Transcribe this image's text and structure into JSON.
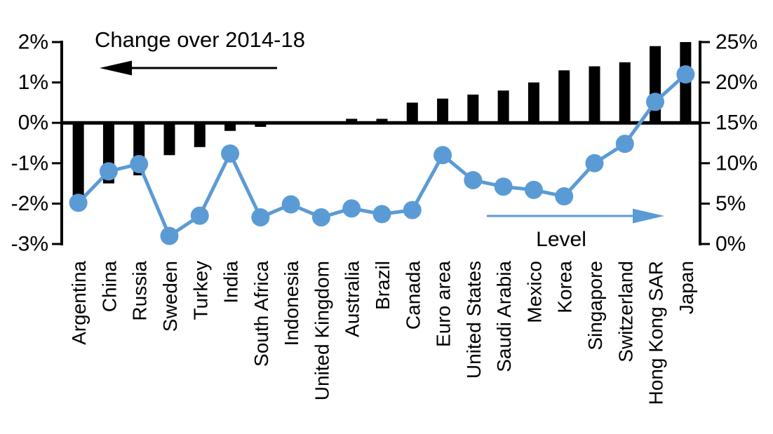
{
  "chart_data": {
    "type": "combo-bar-line",
    "title": "Change over 2014-18",
    "categories": [
      "Argentina",
      "China",
      "Russia",
      "Sweden",
      "Turkey",
      "India",
      "South Africa",
      "Indonesia",
      "United Kingdom",
      "Australia",
      "Brazil",
      "Canada",
      "Euro area",
      "United States",
      "Saudi Arabia",
      "Mexico",
      "Korea",
      "Singapore",
      "Switzerland",
      "Hong Kong SAR",
      "Japan"
    ],
    "series": [
      {
        "name": "Change over 2014-18",
        "type": "bar",
        "axis": "left",
        "values": [
          -1.8,
          -1.5,
          -1.3,
          -0.8,
          -0.6,
          -0.2,
          -0.1,
          0,
          0,
          0.1,
          0.1,
          0.5,
          0.6,
          0.7,
          0.8,
          1.0,
          1.3,
          1.4,
          1.5,
          1.9,
          2.0
        ]
      },
      {
        "name": "Level",
        "type": "line",
        "axis": "right",
        "values": [
          5.1,
          9.0,
          9.9,
          1.0,
          3.5,
          11.2,
          3.3,
          4.9,
          3.3,
          4.4,
          3.7,
          4.2,
          11.0,
          7.9,
          7.1,
          6.7,
          5.9,
          10.0,
          12.4,
          17.6,
          21.0
        ]
      }
    ],
    "left_axis": {
      "tick_labels": [
        "2%",
        "1%",
        "0%",
        "-1%",
        "-2%",
        "-3%"
      ],
      "tick_values": [
        2,
        1,
        0,
        -1,
        -2,
        -3
      ],
      "min": -3,
      "max": 2
    },
    "right_axis": {
      "tick_labels": [
        "25%",
        "20%",
        "15%",
        "10%",
        "5%",
        "0%"
      ],
      "tick_values": [
        25,
        20,
        15,
        10,
        5,
        0
      ],
      "min": 0,
      "max": 25
    },
    "annotations": [
      {
        "text": "Change over 2014-18",
        "arrow_direction": "left",
        "color": "#000000"
      },
      {
        "text": "Level",
        "arrow_direction": "right",
        "color": "#5B9BD5"
      }
    ],
    "colors": {
      "bar": "#000000",
      "line": "#5B9BD5",
      "text": "#000000"
    },
    "legend_position": "none",
    "grid": false
  }
}
